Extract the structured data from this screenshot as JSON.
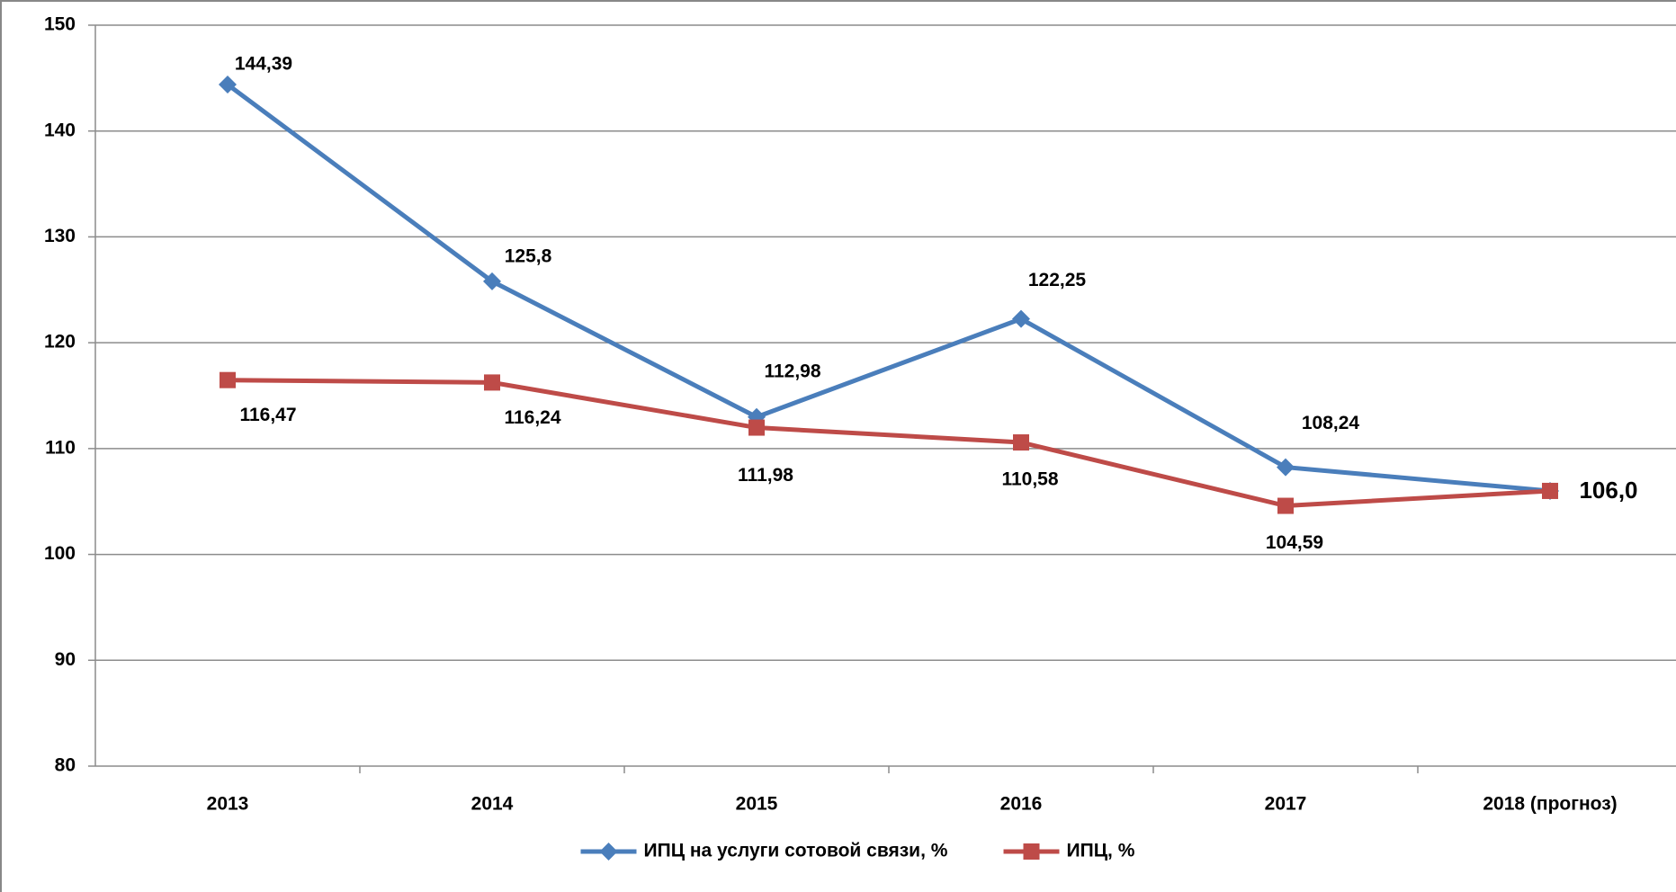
{
  "chart_data": {
    "type": "line",
    "categories": [
      "2013",
      "2014",
      "2015",
      "2016",
      "2017",
      "2018 (прогноз)"
    ],
    "series": [
      {
        "name": "ИПЦ на услуги сотовой связи, %",
        "color": "#4a7ebb",
        "marker": "diamond",
        "values": [
          144.39,
          125.8,
          112.98,
          122.25,
          108.24,
          106.0
        ],
        "value_labels": [
          "144,39",
          "125,8",
          "112,98",
          "122,25",
          "108,24",
          null
        ]
      },
      {
        "name": "ИПЦ, %",
        "color": "#be4b48",
        "marker": "square",
        "values": [
          116.47,
          116.24,
          111.98,
          110.58,
          104.59,
          106.0
        ],
        "value_labels": [
          "116,47",
          "116,24",
          "111,98",
          "110,58",
          "104,59",
          "106,0"
        ]
      }
    ],
    "ylim": [
      80,
      150
    ],
    "yticks": [
      80,
      90,
      100,
      110,
      120,
      130,
      140,
      150
    ],
    "grid": true,
    "legend": "bottom"
  }
}
